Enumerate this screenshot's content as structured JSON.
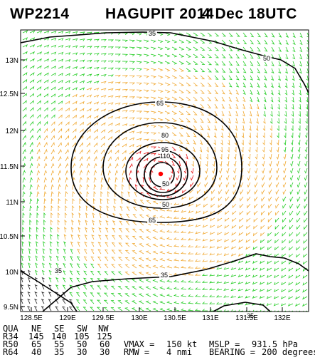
{
  "header": {
    "storm_id": "WP2214",
    "storm_name": "HAGUPIT 2014",
    "valid_time": "4 Dec 18UTC"
  },
  "map": {
    "lat_labels": [
      "13N",
      "12.5N",
      "12N",
      "11.5N",
      "11N",
      "10.5N",
      "10N",
      "9.5N"
    ],
    "lon_labels": [
      "128.5E",
      "129E",
      "129.5E",
      "130E",
      "130.5E",
      "131E",
      "131.5E",
      "132E"
    ],
    "contour_labels": [
      "35",
      "50",
      "65",
      "80",
      "95",
      "110",
      "50",
      "65",
      "50",
      "35",
      "35",
      "35"
    ],
    "colors": {
      "wind_green": "#22cc22",
      "wind_orange": "#f0a830",
      "wind_red": "#e81818",
      "wind_dark": "#222222",
      "contour": "#000000",
      "center_marker": "#ff0000"
    }
  },
  "table": {
    "headers": [
      "QUA",
      "NE",
      "SE",
      "SW",
      "NW"
    ],
    "rows": [
      [
        "R34",
        "145",
        "140",
        "105",
        "125"
      ],
      [
        "R50",
        "65",
        "55",
        "50",
        "60"
      ],
      [
        "R64",
        "40",
        "35",
        "30",
        "30"
      ]
    ]
  },
  "stats": {
    "vmax_label": "VMAX =",
    "vmax_value": "150 kt",
    "mslp_label": "MSLP =",
    "mslp_value": "931.5 hPa",
    "rmw_label": "RMW =",
    "rmw_value": "4 nmi",
    "bearing_label": "BEARING =",
    "bearing_value": "200 degrees"
  }
}
